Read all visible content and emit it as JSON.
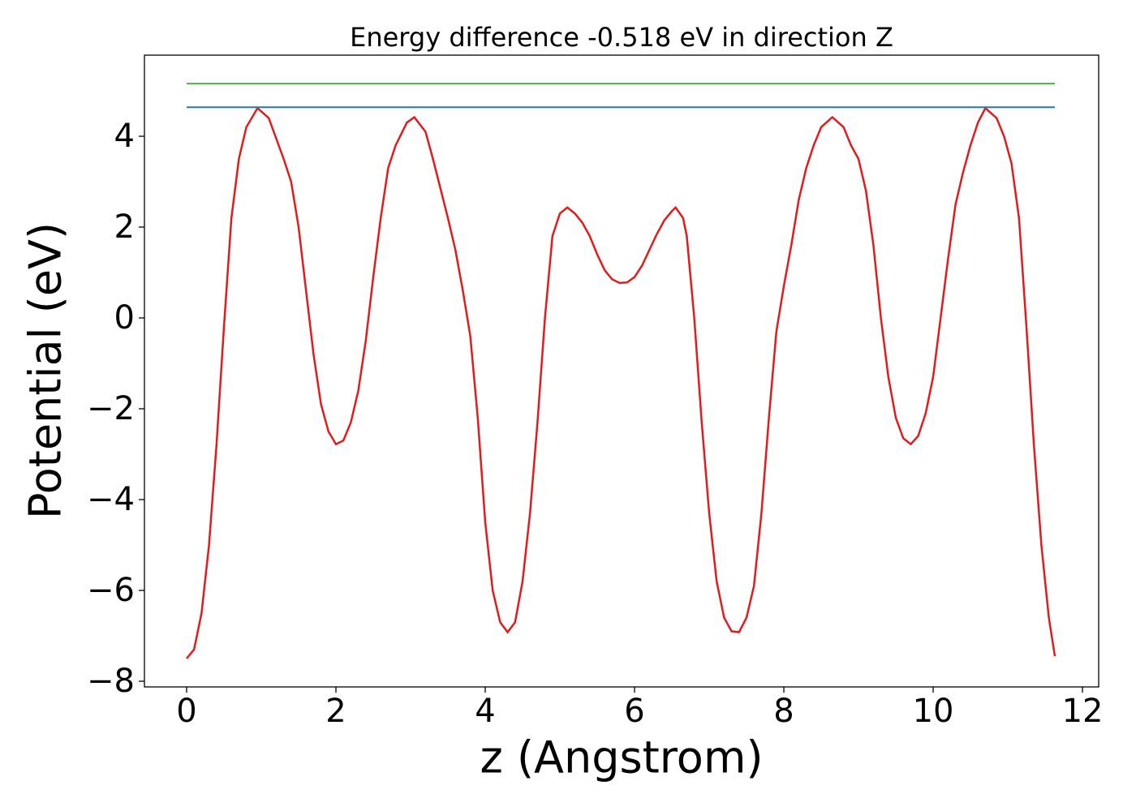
{
  "chart_data": {
    "type": "line",
    "title": "Energy difference -0.518 eV in direction Z",
    "x_label": "z (Angstrom)",
    "y_label": "Potential (eV)",
    "xlim": [
      -0.565,
      12.217
    ],
    "ylim": [
      -8.125,
      5.786
    ],
    "xticks": [
      0,
      2,
      4,
      6,
      8,
      10,
      12
    ],
    "yticks": [
      {
        "value": -8,
        "label": "−8"
      },
      {
        "value": -6,
        "label": "−6"
      },
      {
        "value": -4,
        "label": "−4"
      },
      {
        "value": -2,
        "label": "−2"
      },
      0,
      2,
      4
    ],
    "series": [
      {
        "color": "#e41a1c",
        "x": [
          0,
          0.1,
          0.2,
          0.3,
          0.4,
          0.5,
          0.6,
          0.7,
          0.8,
          0.95,
          1.1,
          1.3,
          1.4,
          1.5,
          1.6,
          1.7,
          1.8,
          1.9,
          2.0,
          2.1,
          2.2,
          2.3,
          2.4,
          2.5,
          2.6,
          2.7,
          2.8,
          2.95,
          3.05,
          3.2,
          3.3,
          3.5,
          3.6,
          3.7,
          3.8,
          3.9,
          4.0,
          4.1,
          4.2,
          4.3,
          4.4,
          4.5,
          4.6,
          4.7,
          4.8,
          4.9,
          5.0,
          5.1,
          5.2,
          5.3,
          5.4,
          5.5,
          5.6,
          5.7,
          5.8,
          5.9,
          6.0,
          6.1,
          6.2,
          6.3,
          6.4,
          6.5,
          6.55,
          6.65,
          6.7,
          6.8,
          6.9,
          7.0,
          7.1,
          7.2,
          7.3,
          7.4,
          7.5,
          7.6,
          7.7,
          7.8,
          7.9,
          8.0,
          8.1,
          8.2,
          8.3,
          8.4,
          8.5,
          8.65,
          8.8,
          8.9,
          9.0,
          9.1,
          9.2,
          9.3,
          9.4,
          9.5,
          9.6,
          9.7,
          9.8,
          9.9,
          10.0,
          10.1,
          10.2,
          10.3,
          10.4,
          10.5,
          10.6,
          10.7,
          10.85,
          10.95,
          11.05,
          11.15,
          11.25,
          11.35,
          11.45,
          11.55,
          11.63
        ],
        "values": [
          -7.5,
          -7.3,
          -6.5,
          -5,
          -2.8,
          -0.2,
          2.2,
          3.5,
          4.2,
          4.62,
          4.4,
          3.5,
          3.0,
          2.0,
          0.6,
          -0.8,
          -1.9,
          -2.5,
          -2.78,
          -2.7,
          -2.3,
          -1.6,
          -0.5,
          0.9,
          2.2,
          3.3,
          3.8,
          4.3,
          4.42,
          4.1,
          3.5,
          2.2,
          1.5,
          0.6,
          -0.4,
          -2.2,
          -4.5,
          -6.0,
          -6.7,
          -6.92,
          -6.7,
          -5.8,
          -4.3,
          -2.3,
          0.0,
          1.8,
          2.3,
          2.43,
          2.3,
          2.1,
          1.8,
          1.4,
          1.05,
          0.85,
          0.77,
          0.78,
          0.9,
          1.15,
          1.5,
          1.85,
          2.15,
          2.35,
          2.43,
          2.2,
          1.8,
          0.0,
          -2.3,
          -4.3,
          -5.8,
          -6.6,
          -6.9,
          -6.92,
          -6.6,
          -5.9,
          -4.3,
          -2.2,
          -0.3,
          0.7,
          1.6,
          2.6,
          3.3,
          3.8,
          4.2,
          4.42,
          4.2,
          3.8,
          3.5,
          2.8,
          1.6,
          0.0,
          -1.3,
          -2.2,
          -2.65,
          -2.78,
          -2.6,
          -2.1,
          -1.3,
          0.0,
          1.3,
          2.5,
          3.2,
          3.8,
          4.3,
          4.62,
          4.4,
          4.0,
          3.4,
          2.2,
          -0.2,
          -2.8,
          -5.0,
          -6.6,
          -7.45
        ]
      },
      {
        "color": "#1f77b4",
        "x": [
          0,
          11.63
        ],
        "values": [
          4.64,
          4.64
        ]
      },
      {
        "color": "#4daf4a",
        "x": [
          0,
          11.63
        ],
        "values": [
          5.16,
          5.16
        ]
      }
    ]
  }
}
